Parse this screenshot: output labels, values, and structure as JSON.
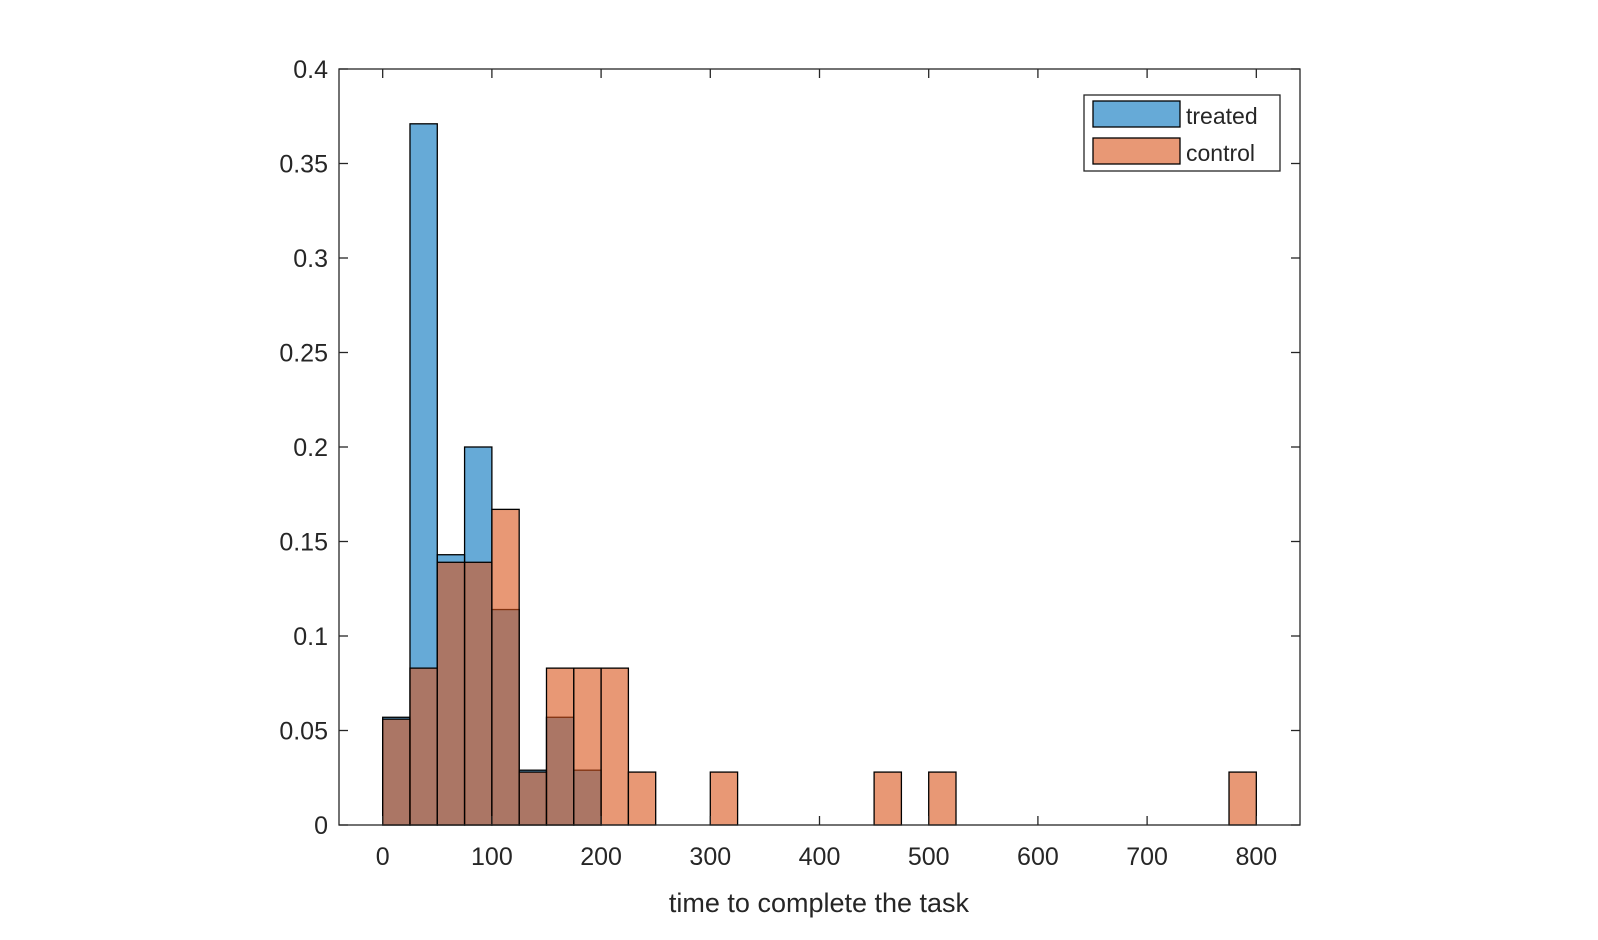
{
  "chart_data": {
    "type": "bar",
    "subtype": "overlapping-histogram",
    "title": "",
    "xlabel": "time to complete the task",
    "ylabel": "",
    "xlim": [
      -40,
      840
    ],
    "ylim": [
      0,
      0.4
    ],
    "xticks": [
      0,
      100,
      200,
      300,
      400,
      500,
      600,
      700,
      800
    ],
    "yticks": [
      0,
      0.05,
      0.1,
      0.15,
      0.2,
      0.25,
      0.3,
      0.35,
      0.4
    ],
    "xtick_labels": [
      "0",
      "100",
      "200",
      "300",
      "400",
      "500",
      "600",
      "700",
      "800"
    ],
    "ytick_labels": [
      "0",
      "0.05",
      "0.1",
      "0.15",
      "0.2",
      "0.25",
      "0.3",
      "0.35",
      "0.4"
    ],
    "bin_width": 25,
    "grid": false,
    "legend_position": "top-right",
    "series": [
      {
        "name": "treated",
        "color": "#0072BD",
        "bin_starts": [
          0,
          25,
          50,
          75,
          100,
          125,
          150,
          175
        ],
        "values": [
          0.057,
          0.371,
          0.143,
          0.2,
          0.114,
          0.029,
          0.057,
          0.029
        ]
      },
      {
        "name": "control",
        "color": "#D95319",
        "bin_starts": [
          0,
          25,
          50,
          75,
          100,
          125,
          150,
          175,
          200,
          225,
          300,
          450,
          500,
          775
        ],
        "values": [
          0.056,
          0.083,
          0.139,
          0.139,
          0.167,
          0.028,
          0.083,
          0.083,
          0.083,
          0.028,
          0.028,
          0.028,
          0.028,
          0.028
        ]
      }
    ]
  }
}
